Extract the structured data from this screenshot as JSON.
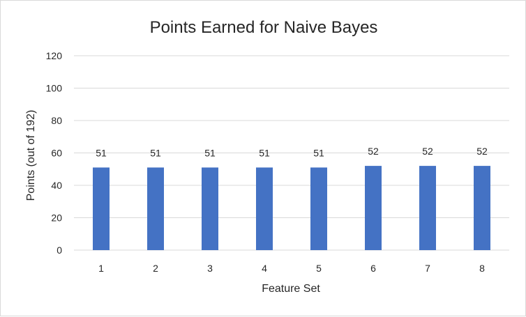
{
  "chart_data": {
    "type": "bar",
    "title": "Points Earned for Naive Bayes",
    "xlabel": "Feature Set",
    "ylabel": "Points (out of 192)",
    "categories": [
      "1",
      "2",
      "3",
      "4",
      "5",
      "6",
      "7",
      "8"
    ],
    "values": [
      51,
      51,
      51,
      51,
      51,
      52,
      52,
      52
    ],
    "ylim": [
      0,
      120
    ],
    "yticks": [
      0,
      20,
      40,
      60,
      80,
      100,
      120
    ],
    "grid": true,
    "legend": "none",
    "bar_color": "#4472c4",
    "grid_color": "#d9d9d9"
  }
}
